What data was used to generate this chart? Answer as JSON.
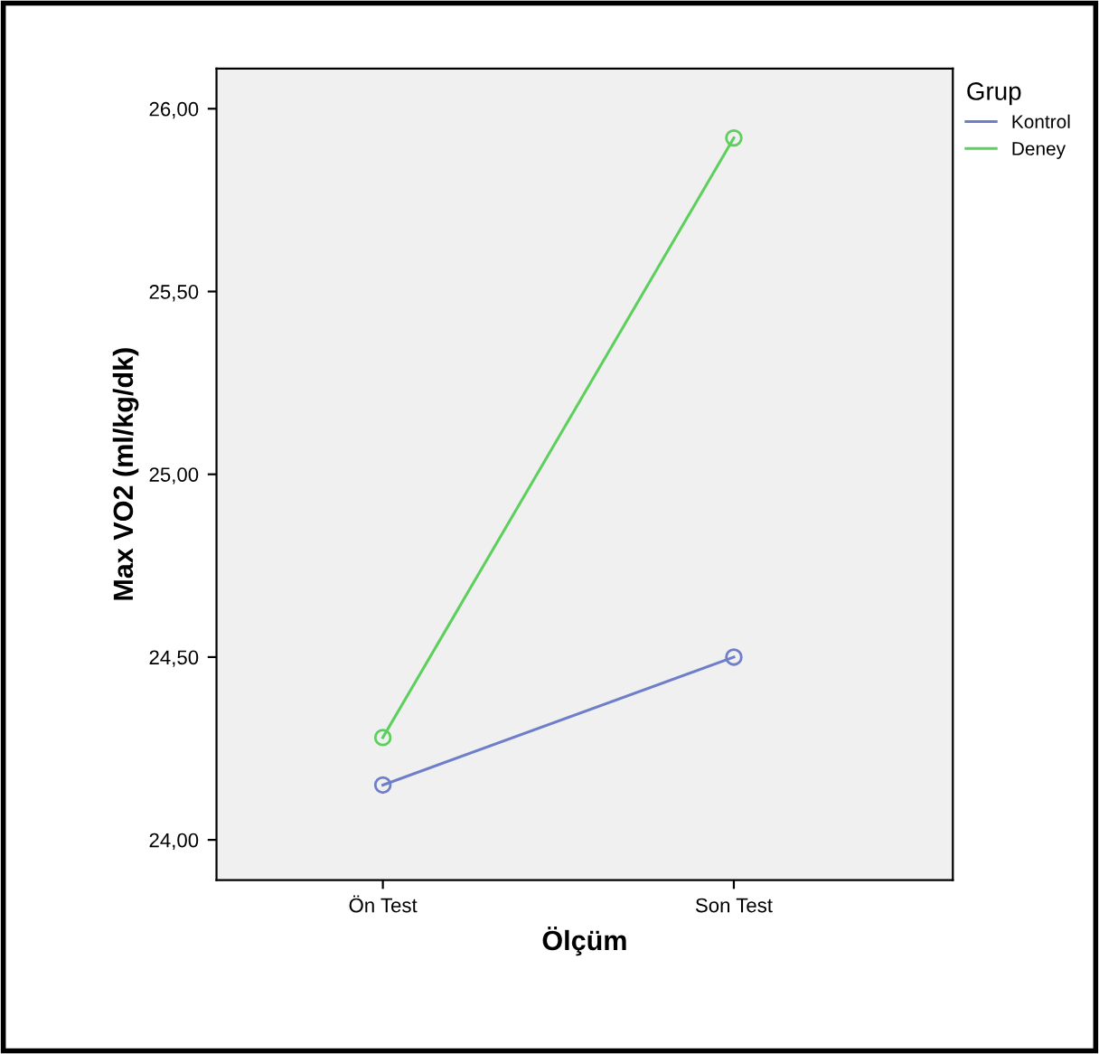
{
  "chart_data": {
    "type": "line",
    "xlabel": "Ölçüm",
    "ylabel": "Max VO2 (ml/kg/dk)",
    "legend_title": "Grup",
    "categories": [
      "Ön Test",
      "Son Test"
    ],
    "series": [
      {
        "name": "Kontrol",
        "color": "#6e7ec8",
        "values": [
          24.15,
          24.5
        ]
      },
      {
        "name": "Deney",
        "color": "#5ccf5c",
        "values": [
          24.28,
          25.92
        ]
      }
    ],
    "ylim": [
      23.89,
      26.11
    ],
    "yticks": [
      {
        "value": 24,
        "label": "24,00"
      },
      {
        "value": 24.5,
        "label": "24,50"
      },
      {
        "value": 25,
        "label": "25,00"
      },
      {
        "value": 25.5,
        "label": "25,50"
      },
      {
        "value": 26,
        "label": "26,00"
      }
    ],
    "grid": false,
    "legend": "top right",
    "marker": "circle",
    "line_style": "solid"
  }
}
